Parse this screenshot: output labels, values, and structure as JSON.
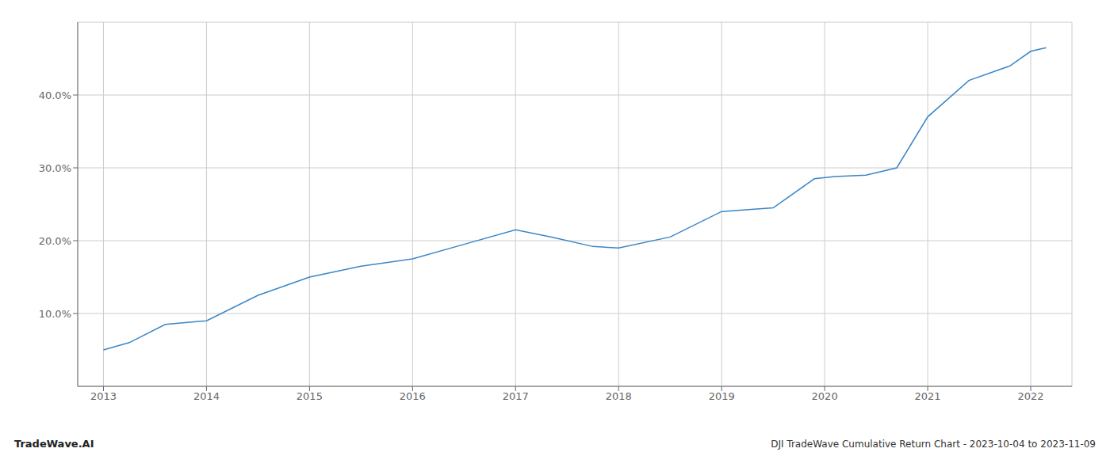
{
  "chart_data": {
    "type": "line",
    "title": "DJI TradeWave Cumulative Return Chart - 2023-10-04 to 2023-11-09",
    "annotations": [
      "TradeWave.AI"
    ],
    "x": [
      2013.0,
      2013.25,
      2013.6,
      2014.0,
      2014.5,
      2015.0,
      2015.5,
      2016.0,
      2016.5,
      2017.0,
      2017.35,
      2017.75,
      2018.0,
      2018.5,
      2019.0,
      2019.5,
      2019.9,
      2020.1,
      2020.4,
      2020.7,
      2021.0,
      2021.4,
      2021.8,
      2022.0,
      2022.15
    ],
    "values": [
      5.0,
      6.0,
      8.5,
      9.0,
      12.5,
      15.0,
      16.5,
      17.5,
      19.5,
      21.5,
      20.5,
      19.2,
      19.0,
      20.5,
      24.0,
      24.5,
      28.5,
      28.8,
      29.0,
      30.0,
      37.0,
      42.0,
      44.0,
      46.0,
      46.5
    ],
    "color": "#3a86c8",
    "xlim": [
      2012.75,
      2022.4
    ],
    "ylim": [
      0,
      50
    ],
    "xticks": [
      2013,
      2014,
      2015,
      2016,
      2017,
      2018,
      2019,
      2020,
      2021,
      2022
    ],
    "yticks": [
      {
        "value": 10.0,
        "label": "10.0%"
      },
      {
        "value": 20.0,
        "label": "20.0%"
      },
      {
        "value": 30.0,
        "label": "30.0%"
      },
      {
        "value": 40.0,
        "label": "40.0%"
      }
    ],
    "grid": true
  }
}
